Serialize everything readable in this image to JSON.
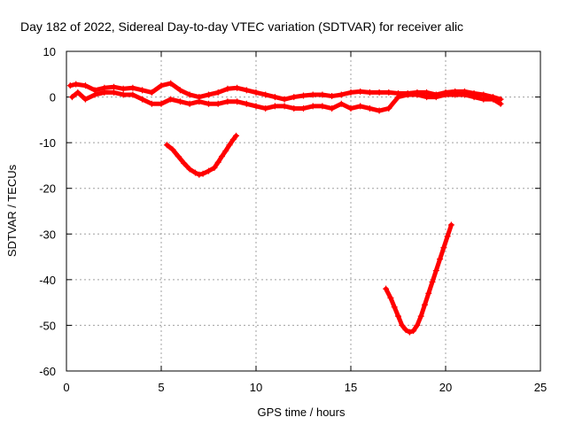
{
  "chart_data": {
    "type": "scatter",
    "title": "Day 182 of 2022, Sidereal Day-to-day VTEC variation (SDTVAR) for receiver alic",
    "xlabel": "GPS time / hours",
    "ylabel": "SDTVAR / TECUs",
    "xlim": [
      0,
      25
    ],
    "ylim": [
      -60,
      10
    ],
    "x_ticks": [
      0,
      5,
      10,
      15,
      20,
      25
    ],
    "y_ticks": [
      10,
      0,
      -10,
      -20,
      -30,
      -40,
      -50,
      -60
    ],
    "grid": true,
    "marker": "+",
    "color": "#ff0000",
    "series": [
      {
        "name": "main band upper",
        "x": [
          0.2,
          0.5,
          1.0,
          1.5,
          2.0,
          2.5,
          3.0,
          3.5,
          4.0,
          4.5,
          5.0,
          5.5,
          6.0,
          6.5,
          7.0,
          7.5,
          8.0,
          8.5,
          9.0,
          9.5,
          10.0,
          10.5,
          11.0,
          11.5,
          12.0,
          12.5,
          13.0,
          13.5,
          14.0,
          14.5,
          15.0,
          15.5,
          16.0,
          16.5,
          17.0,
          17.5,
          18.0,
          18.5,
          19.0,
          19.5,
          20.0,
          20.5,
          21.0,
          21.5,
          22.0,
          22.5,
          22.9
        ],
        "y": [
          2.5,
          2.8,
          2.5,
          1.5,
          2.0,
          2.2,
          1.8,
          2.0,
          1.5,
          1.0,
          2.5,
          3.0,
          1.5,
          0.5,
          0.0,
          0.5,
          1.0,
          1.8,
          2.0,
          1.5,
          1.0,
          0.5,
          0.0,
          -0.5,
          0.0,
          0.3,
          0.5,
          0.5,
          0.2,
          0.5,
          1.0,
          1.2,
          1.0,
          1.0,
          1.0,
          0.8,
          0.8,
          1.0,
          1.0,
          0.5,
          1.0,
          1.2,
          1.2,
          0.8,
          0.5,
          0.0,
          -0.5
        ]
      },
      {
        "name": "main band lower",
        "x": [
          0.3,
          0.6,
          1.0,
          1.5,
          2.0,
          2.5,
          3.0,
          3.5,
          4.0,
          4.5,
          5.0,
          5.5,
          6.0,
          6.5,
          7.0,
          7.5,
          8.0,
          8.5,
          9.0,
          9.5,
          10.0,
          10.5,
          11.0,
          11.5,
          12.0,
          12.5,
          13.0,
          13.5,
          14.0,
          14.5,
          15.0,
          15.5,
          16.0,
          16.5,
          17.0,
          17.5,
          18.0,
          18.5,
          19.0,
          19.5,
          20.0,
          20.5,
          21.0,
          21.5,
          22.0,
          22.5,
          22.9
        ],
        "y": [
          0.0,
          1.0,
          -0.5,
          0.5,
          1.0,
          1.0,
          0.5,
          0.5,
          -0.5,
          -1.5,
          -1.5,
          -0.5,
          -1.0,
          -1.5,
          -1.0,
          -1.5,
          -1.5,
          -1.0,
          -1.0,
          -1.5,
          -2.0,
          -2.5,
          -2.0,
          -2.0,
          -2.5,
          -2.5,
          -2.0,
          -2.0,
          -2.5,
          -1.5,
          -2.5,
          -2.0,
          -2.5,
          -3.0,
          -2.5,
          0.0,
          0.5,
          0.5,
          0.0,
          0.0,
          0.5,
          0.5,
          0.5,
          0.0,
          -0.5,
          -0.5,
          -1.5
        ]
      },
      {
        "name": "dip 5.3-8.9 h",
        "x": [
          5.3,
          5.6,
          5.9,
          6.2,
          6.5,
          6.8,
          7.0,
          7.2,
          7.5,
          7.8,
          8.0,
          8.2,
          8.4,
          8.6,
          8.8,
          8.95
        ],
        "y": [
          -10.5,
          -11.5,
          -13.0,
          -14.5,
          -15.8,
          -16.6,
          -17.0,
          -16.8,
          -16.2,
          -15.5,
          -14.3,
          -13.0,
          -11.8,
          -10.5,
          -9.3,
          -8.5
        ]
      },
      {
        "name": "dip 16.8-20.3 h",
        "x": [
          16.85,
          17.1,
          17.3,
          17.5,
          17.7,
          17.9,
          18.1,
          18.3,
          18.5,
          18.7,
          18.9,
          19.1,
          19.3,
          19.5,
          19.7,
          19.9,
          20.1,
          20.3
        ],
        "y": [
          -42.0,
          -44.0,
          -46.0,
          -48.0,
          -50.0,
          -51.0,
          -51.5,
          -51.2,
          -50.0,
          -48.0,
          -45.5,
          -43.0,
          -40.5,
          -38.0,
          -35.5,
          -33.0,
          -30.5,
          -28.0
        ]
      }
    ]
  }
}
